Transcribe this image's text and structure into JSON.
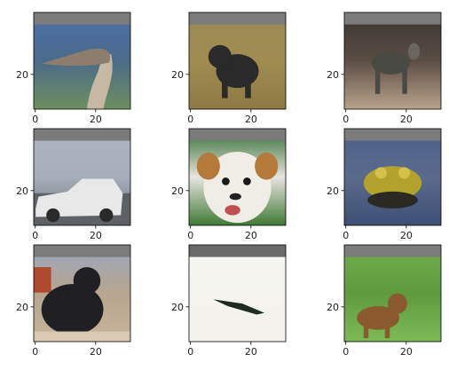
{
  "chart_data": {
    "type": "image-grid",
    "rows": 3,
    "cols": 3,
    "image_size": [
      32,
      32
    ],
    "top_band_rows": 4,
    "axis_extent": [
      -0.5,
      31.5
    ],
    "xticks": [
      0,
      20
    ],
    "yticks": [
      20
    ],
    "panels": [
      {
        "subject": "ostrich head",
        "band": "#7b7b7b",
        "bg_top": "#4f6fa8",
        "bg_bottom": "#6e8f5e",
        "mid": "#4a6b8a",
        "blobs": [
          {
            "shape": "neck",
            "color": "#c7b8a4"
          },
          {
            "shape": "head",
            "color": "#8c7d6c"
          }
        ]
      },
      {
        "subject": "dog on grass",
        "band": "#7b7b7b",
        "bg_top": "#9a8a56",
        "bg_bottom": "#8f7a45",
        "mid": "#a08b50",
        "blobs": [
          {
            "shape": "dog",
            "color": "#2a2a2a"
          }
        ]
      },
      {
        "subject": "dark animal",
        "band": "#7b7b7b",
        "bg_top": "#3a3532",
        "bg_bottom": "#bba38c",
        "mid": "#5a4e44",
        "blobs": [
          {
            "shape": "animal",
            "color": "#4a4a44"
          }
        ]
      },
      {
        "subject": "car",
        "band": "#7b7b7b",
        "bg_top": "#aeb6c1",
        "bg_bottom": "#6f7378",
        "mid": "#a5aeb9",
        "blobs": [
          {
            "shape": "car",
            "color": "#e8e8e8"
          }
        ]
      },
      {
        "subject": "dog face",
        "band": "#7b7b7b",
        "bg_top": "#2e6b2e",
        "bg_bottom": "#3f7a36",
        "mid": "#e8e4df",
        "blobs": [
          {
            "shape": "face",
            "color": "#f0ece6"
          },
          {
            "shape": "ears",
            "color": "#b57a3a"
          }
        ]
      },
      {
        "subject": "frog",
        "band": "#7b7b7b",
        "bg_top": "#4d5f8a",
        "bg_bottom": "#3e4f76",
        "mid": "#5a6b8c",
        "blobs": [
          {
            "shape": "frog",
            "color": "#b3a22c"
          }
        ]
      },
      {
        "subject": "black cat",
        "band": "#7b7b7b",
        "bg_top": "#9aa6c0",
        "bg_bottom": "#c9b49a",
        "mid": "#b7a58f",
        "blobs": [
          {
            "shape": "cat",
            "color": "#1f1f24"
          }
        ]
      },
      {
        "subject": "bird in sky",
        "band": "#6a6a6a",
        "bg_top": "#f6f6f2",
        "bg_bottom": "#f3f2ec",
        "mid": "#f4f3ee",
        "blobs": [
          {
            "shape": "streak",
            "color": "#1e2a22"
          }
        ]
      },
      {
        "subject": "deer in foliage",
        "band": "#7b7b7b",
        "bg_top": "#6fae4a",
        "bg_bottom": "#7bbb55",
        "mid": "#5f9a3f",
        "blobs": [
          {
            "shape": "deer",
            "color": "#8a5a2e"
          }
        ]
      }
    ]
  }
}
